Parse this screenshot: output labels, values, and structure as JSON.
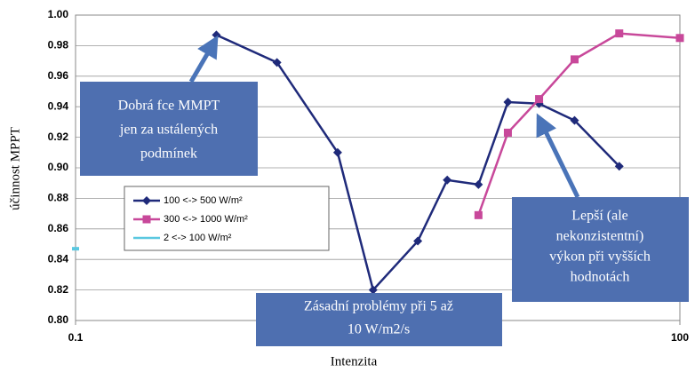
{
  "chart_data": {
    "type": "line",
    "x_label": "Intenzita",
    "y_label": "účinnost MPPT",
    "log_x": true,
    "grid": true,
    "xlim": [
      0.1,
      100
    ],
    "xticks": [
      0.1,
      100
    ],
    "ylim": [
      0.8,
      1.0
    ],
    "yticks": [
      {
        "value": 0.8,
        "label": "0.80"
      },
      {
        "value": 0.82,
        "label": "0.82"
      },
      {
        "value": 0.84,
        "label": "0.84"
      },
      {
        "value": 0.86,
        "label": "0.86"
      },
      {
        "value": 0.88,
        "label": "0.88"
      },
      {
        "value": 0.9,
        "label": "0.90"
      },
      {
        "value": 0.92,
        "label": "0.92"
      },
      {
        "value": 0.94,
        "label": "0.94"
      },
      {
        "value": 0.96,
        "label": "0.96"
      },
      {
        "value": 0.98,
        "label": "0.98"
      },
      {
        "value": 1.0,
        "label": "1.00"
      }
    ],
    "series": [
      {
        "name": "100 <-> 500 W/m²",
        "color": "#1f2a7a",
        "marker": "diamond",
        "x": [
          0.5,
          1,
          2,
          3,
          5,
          7,
          10,
          14,
          20,
          30,
          50
        ],
        "values": [
          0.987,
          0.969,
          0.91,
          0.82,
          0.852,
          0.892,
          0.889,
          0.943,
          0.942,
          0.931,
          0.901
        ]
      },
      {
        "name": "300 <-> 1000 W/m²",
        "color": "#c8489a",
        "marker": "square",
        "x": [
          10,
          14,
          20,
          30,
          50,
          100
        ],
        "values": [
          0.869,
          0.923,
          0.945,
          0.971,
          0.988,
          0.985
        ]
      },
      {
        "name": "2 <-> 100 W/m²",
        "color": "#5bc8e0",
        "marker": "dash",
        "x": [
          0.1
        ],
        "values": [
          0.847
        ]
      }
    ],
    "annotations": [
      {
        "lines": [
          "Dobrá fce MMPT",
          "jen za ustálených",
          "podmínek"
        ]
      },
      {
        "lines": [
          "Zásadní problémy při 5 až",
          "10 W/m2/s"
        ]
      },
      {
        "lines": [
          "Lepší (ale",
          "nekonzistentní)",
          "výkon při vyšších",
          "hodnotách"
        ]
      }
    ]
  }
}
